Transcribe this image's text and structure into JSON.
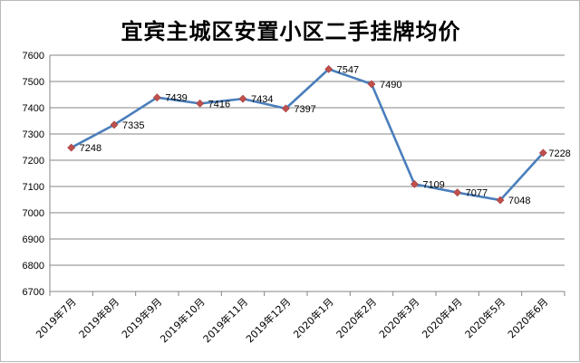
{
  "chart_data": {
    "type": "line",
    "title": "宜宾主城区安置小区二手挂牌均价",
    "xlabel": "",
    "ylabel": "",
    "categories": [
      "2019年7月",
      "2019年8月",
      "2019年9月",
      "2019年10月",
      "2019年11月",
      "2019年12月",
      "2020年1月",
      "2020年2月",
      "2020年3月",
      "2020年4月",
      "2020年5月",
      "2020年6月"
    ],
    "series": [
      {
        "values": [
          7248,
          7335,
          7439,
          7416,
          7434,
          7397,
          7547,
          7490,
          7109,
          7077,
          7048,
          7228
        ]
      }
    ],
    "ylim": [
      6700,
      7600
    ],
    "yticks": [
      6700,
      6800,
      6900,
      7000,
      7100,
      7200,
      7300,
      7400,
      7500,
      7600
    ],
    "grid": true,
    "legend": "none",
    "colors": {
      "line": "#4a7ebb",
      "marker": "#c0504d",
      "grid": "#868686",
      "axis": "#868686"
    }
  }
}
